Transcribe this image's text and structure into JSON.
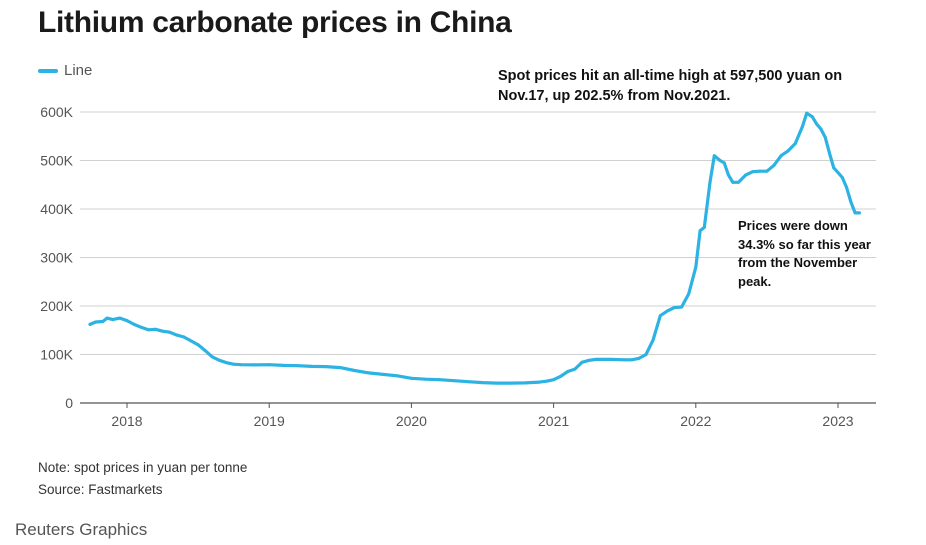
{
  "chart_data": {
    "type": "line",
    "title": "Lithium carbonate prices in China",
    "legend": [
      "Line"
    ],
    "legend_position": "top-left",
    "xlabel": "",
    "ylabel": "",
    "x_ticks": [
      "2018",
      "2019",
      "2020",
      "2021",
      "2022",
      "2023"
    ],
    "y_ticks": [
      "0",
      "100K",
      "200K",
      "300K",
      "400K",
      "500K",
      "600K"
    ],
    "ylim": [
      0,
      600000
    ],
    "xlim": [
      2017.7,
      2023.25
    ],
    "series": [
      {
        "name": "Line",
        "color": "#2cb2e3",
        "x": [
          2017.74,
          2017.78,
          2017.83,
          2017.86,
          2017.9,
          2017.95,
          2018.0,
          2018.05,
          2018.1,
          2018.15,
          2018.2,
          2018.25,
          2018.3,
          2018.35,
          2018.4,
          2018.45,
          2018.5,
          2018.55,
          2018.6,
          2018.65,
          2018.7,
          2018.75,
          2018.8,
          2018.9,
          2019.0,
          2019.1,
          2019.2,
          2019.3,
          2019.4,
          2019.5,
          2019.6,
          2019.7,
          2019.8,
          2019.9,
          2020.0,
          2020.1,
          2020.2,
          2020.3,
          2020.4,
          2020.5,
          2020.6,
          2020.7,
          2020.8,
          2020.9,
          2020.95,
          2021.0,
          2021.05,
          2021.1,
          2021.15,
          2021.2,
          2021.25,
          2021.3,
          2021.4,
          2021.5,
          2021.55,
          2021.6,
          2021.65,
          2021.7,
          2021.75,
          2021.8,
          2021.85,
          2021.9,
          2021.95,
          2022.0,
          2022.03,
          2022.06,
          2022.1,
          2022.13,
          2022.17,
          2022.2,
          2022.23,
          2022.26,
          2022.3,
          2022.35,
          2022.4,
          2022.45,
          2022.5,
          2022.55,
          2022.6,
          2022.65,
          2022.7,
          2022.75,
          2022.78,
          2022.82,
          2022.85,
          2022.88,
          2022.91,
          2022.94,
          2022.97,
          2023.0,
          2023.03,
          2023.06,
          2023.09,
          2023.12,
          2023.15
        ],
        "values": [
          162000,
          167000,
          168000,
          175000,
          172000,
          175000,
          170000,
          162000,
          156000,
          151000,
          152000,
          148000,
          146000,
          140000,
          136000,
          128000,
          120000,
          108000,
          95000,
          88000,
          83000,
          80000,
          79000,
          78500,
          79000,
          77500,
          77000,
          75500,
          75000,
          73000,
          67000,
          62000,
          59000,
          56000,
          51000,
          49000,
          48000,
          46000,
          44000,
          42000,
          41000,
          41000,
          41500,
          43000,
          45000,
          48000,
          55000,
          65000,
          70000,
          84000,
          88000,
          90000,
          90000,
          89000,
          89000,
          92000,
          100000,
          130000,
          180000,
          190000,
          197000,
          198000,
          225000,
          280000,
          355000,
          362000,
          455000,
          510000,
          500000,
          495000,
          470000,
          455000,
          455000,
          470000,
          477000,
          478000,
          478000,
          490000,
          510000,
          520000,
          535000,
          570000,
          597500,
          590000,
          575000,
          565000,
          548000,
          515000,
          485000,
          475000,
          465000,
          445000,
          415000,
          392000,
          392000
        ]
      }
    ],
    "annotations": [
      "Spot prices hit an all-time high at 597,500 yuan on Nov.17, up 202.5% from Nov.2021.",
      "Prices were down 34.3% so far this year from the November peak."
    ],
    "grid": true
  },
  "notes": [
    "Note: spot prices in yuan per tonne",
    "Source: Fastmarkets"
  ],
  "credit": "Reuters Graphics"
}
